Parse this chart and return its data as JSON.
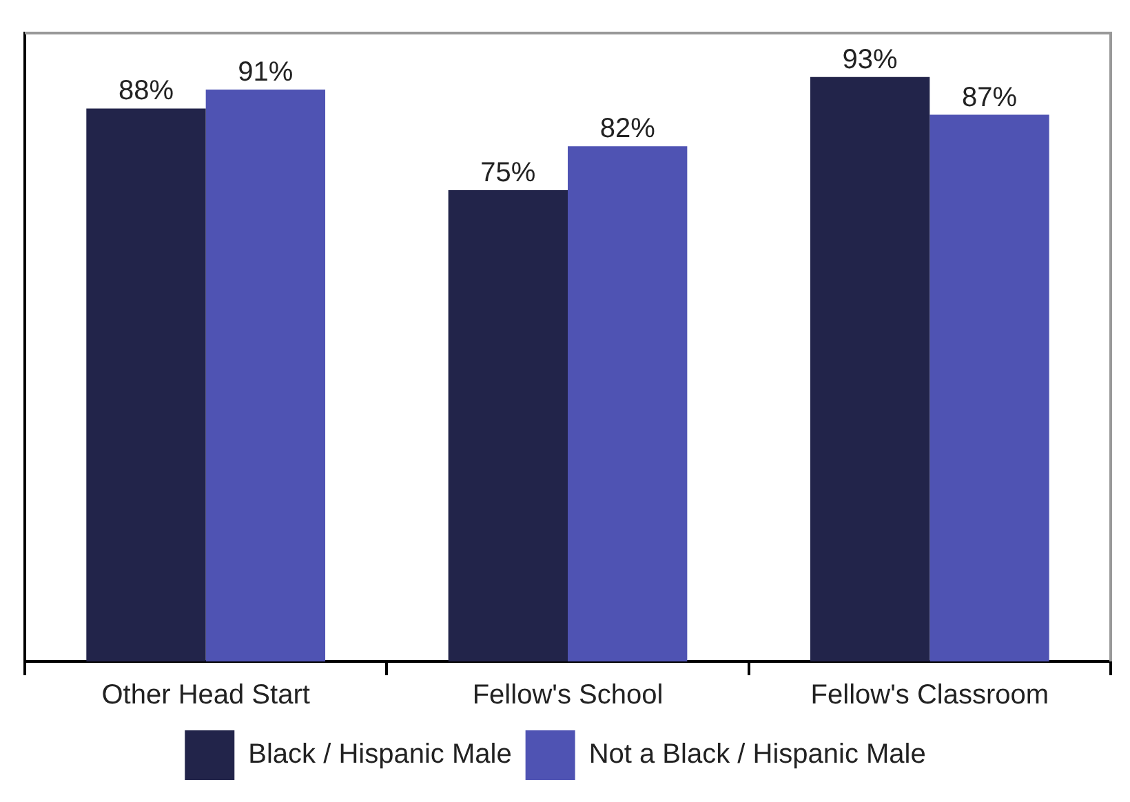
{
  "chart_data": {
    "type": "bar",
    "categories": [
      "Other Head Start",
      "Fellow's School",
      "Fellow's Classroom"
    ],
    "series": [
      {
        "name": "Black / Hispanic Male",
        "color": "#22244a",
        "values": [
          88,
          75,
          93
        ],
        "value_labels": [
          "88%",
          "75%",
          "93%"
        ]
      },
      {
        "name": "Not a Black / Hispanic Male",
        "color": "#4f53b3",
        "values": [
          91,
          82,
          87
        ],
        "value_labels": [
          "91%",
          "82%",
          "87%"
        ]
      }
    ],
    "ylim": [
      0,
      100
    ],
    "tick_labels": "x",
    "grid": false,
    "legend": "bottom"
  }
}
